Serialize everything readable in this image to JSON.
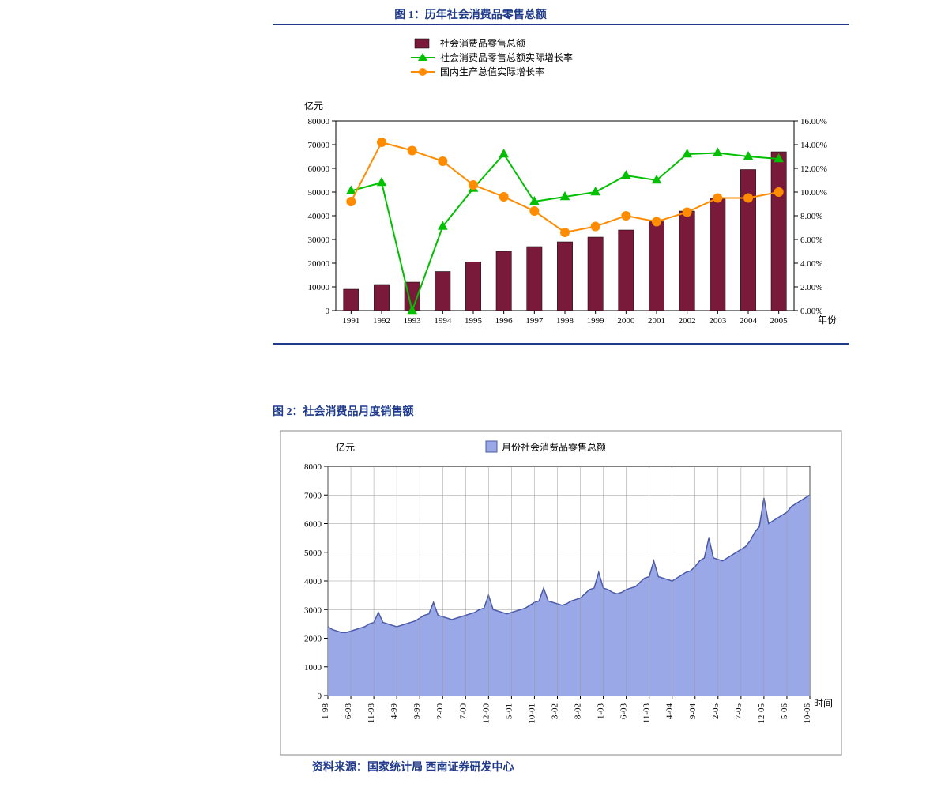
{
  "figure1": {
    "title": "图 1：历年社会消费品零售总额",
    "title_color": "#1f3a8a",
    "rule_color": "#1f3a8a",
    "chart": {
      "type": "bar+line+line",
      "y_unit_label": "亿元",
      "x_axis_label": "年份",
      "categories": [
        "1991",
        "1992",
        "1993",
        "1994",
        "1995",
        "1996",
        "1997",
        "1998",
        "1999",
        "2000",
        "2001",
        "2002",
        "2003",
        "2004",
        "2005"
      ],
      "bars": {
        "name": "社会消费品零售总额",
        "values": [
          9000,
          11000,
          12000,
          16500,
          20500,
          25000,
          27000,
          29000,
          31000,
          34000,
          37500,
          42000,
          47500,
          59500,
          67000
        ],
        "color": "#7a1a3a",
        "bar_width": 0.5
      },
      "line_green": {
        "name": "社会消费品零售总额实际增长率",
        "values_pct": [
          10.1,
          10.8,
          0.0,
          7.1,
          10.3,
          13.2,
          9.2,
          9.6,
          10.0,
          11.4,
          11.0,
          13.2,
          13.3,
          13.0,
          12.8
        ],
        "color": "#00c000",
        "marker": "triangle",
        "marker_size": 7,
        "line_width": 2
      },
      "line_orange": {
        "name": "国内生产总值实际增长率",
        "values_pct": [
          9.2,
          14.2,
          13.5,
          12.6,
          10.6,
          9.6,
          8.4,
          6.6,
          7.1,
          8.0,
          7.5,
          8.3,
          9.5,
          9.5,
          10.0
        ],
        "color": "#ff8c00",
        "marker": "circle",
        "marker_size": 6,
        "line_width": 2
      },
      "y_left": {
        "min": 0,
        "max": 80000,
        "step": 10000
      },
      "y_right": {
        "min": 0.0,
        "max": 16.0,
        "step": 2.0,
        "format": "%.2f%%"
      },
      "fontsize": 12,
      "tick_fontsize": 11,
      "legend_fontsize": 12,
      "background_color": "#ffffff",
      "axis_color": "#000000",
      "plot_border": true
    }
  },
  "figure2": {
    "title": "图 2：社会消费品月度销售额",
    "title_color": "#1f3a8a",
    "source": "资料来源：国家统计局 西南证券研发中心",
    "chart": {
      "type": "area",
      "y_unit_label": "亿元",
      "x_axis_label": "时间",
      "series_name": "月份社会消费品零售总额",
      "fill_color": "#9aa8e8",
      "line_color": "#4a5aa8",
      "line_width": 1.5,
      "background_color": "#ffffff",
      "grid_color": "#999999",
      "grid_on": true,
      "y": {
        "min": 0,
        "max": 8000,
        "step": 1000
      },
      "x_tick_labels": [
        "1-98",
        "6-98",
        "11-98",
        "4-99",
        "9-99",
        "2-00",
        "7-00",
        "12-00",
        "5-01",
        "10-01",
        "3-02",
        "8-02",
        "1-03",
        "6-03",
        "11-03",
        "4-04",
        "9-04",
        "2-05",
        "7-05",
        "12-05",
        "5-06",
        "10-06"
      ],
      "x_tick_interval": 5,
      "fontsize": 12,
      "tick_fontsize": 11,
      "values": [
        2400,
        2300,
        2250,
        2200,
        2200,
        2250,
        2300,
        2350,
        2400,
        2500,
        2550,
        2900,
        2550,
        2500,
        2450,
        2400,
        2450,
        2500,
        2550,
        2600,
        2700,
        2800,
        2850,
        3250,
        2800,
        2750,
        2700,
        2650,
        2700,
        2750,
        2800,
        2850,
        2900,
        3000,
        3050,
        3500,
        3000,
        2950,
        2900,
        2850,
        2900,
        2950,
        3000,
        3050,
        3150,
        3250,
        3300,
        3750,
        3300,
        3250,
        3200,
        3150,
        3200,
        3300,
        3350,
        3400,
        3550,
        3700,
        3750,
        4300,
        3750,
        3700,
        3600,
        3550,
        3600,
        3700,
        3750,
        3800,
        3950,
        4100,
        4150,
        4700,
        4150,
        4100,
        4050,
        4000,
        4100,
        4200,
        4300,
        4350,
        4500,
        4700,
        4800,
        5500,
        4800,
        4750,
        4700,
        4800,
        4900,
        5000,
        5100,
        5200,
        5400,
        5700,
        5900,
        6900,
        6000,
        6100,
        6200,
        6300,
        6400,
        6600,
        6700,
        6800,
        6900,
        7000
      ]
    }
  }
}
